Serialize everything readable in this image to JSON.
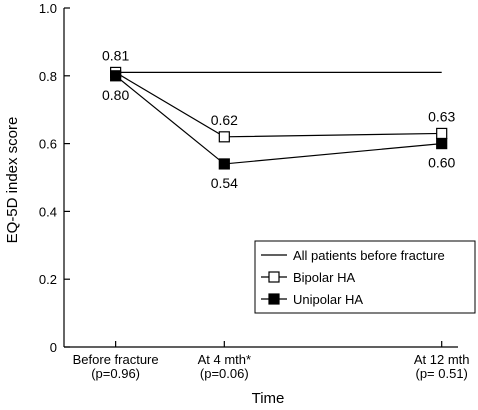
{
  "chart_data": {
    "type": "line",
    "xlabel": "Time",
    "ylabel": "EQ-5D index score",
    "ylim": [
      0,
      1.0
    ],
    "yticks": [
      "0",
      "0.2",
      "0.4",
      "0.6",
      "0.8",
      "1.0"
    ],
    "ytick_values": [
      0,
      0.2,
      0.4,
      0.6,
      0.8,
      1.0
    ],
    "grid": false,
    "legend_position": "bottom-right",
    "categories": [
      {
        "line1": "Before fracture",
        "line2": "(p=0.96)",
        "months": 0
      },
      {
        "line1": "At 4 mth*",
        "line2": "(p=0.06)",
        "months": 4
      },
      {
        "line1": "At 12 mth",
        "line2": "(p= 0.51)",
        "months": 12
      }
    ],
    "reference": {
      "name": "All patients before fracture",
      "value": 0.81
    },
    "series": [
      {
        "name": "Bipolar HA",
        "marker": "open-square",
        "color": "#000000",
        "values": [
          0.81,
          0.62,
          0.63
        ],
        "labels": [
          "0.81",
          "0.62",
          "0.63"
        ],
        "label_position": "above"
      },
      {
        "name": "Unipolar HA",
        "marker": "filled-square",
        "color": "#000000",
        "values": [
          0.8,
          0.54,
          0.6
        ],
        "labels": [
          "0.80",
          "0.54",
          "0.60"
        ],
        "label_position": "below"
      }
    ]
  }
}
